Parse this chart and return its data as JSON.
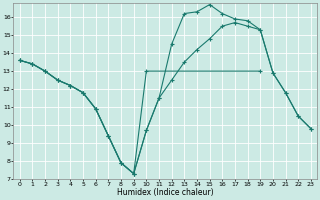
{
  "xlabel": "Humidex (Indice chaleur)",
  "bg_color": "#cceae4",
  "grid_color": "#ffffff",
  "line_color": "#1a7a6e",
  "xlim": [
    -0.5,
    23.5
  ],
  "ylim": [
    7,
    16.8
  ],
  "yticks": [
    7,
    8,
    9,
    10,
    11,
    12,
    13,
    14,
    15,
    16
  ],
  "xticks": [
    0,
    1,
    2,
    3,
    4,
    5,
    6,
    7,
    8,
    9,
    10,
    11,
    12,
    13,
    14,
    15,
    16,
    17,
    18,
    19,
    20,
    21,
    22,
    23
  ],
  "series": [
    {
      "x": [
        0,
        1,
        2,
        3,
        4,
        5,
        6,
        7,
        8,
        9,
        10,
        11,
        12,
        13,
        14,
        15,
        16,
        17,
        18,
        19,
        20,
        21,
        22,
        23
      ],
      "y": [
        13.6,
        13.4,
        13.0,
        12.5,
        12.2,
        11.8,
        10.9,
        9.4,
        7.9,
        7.3,
        9.7,
        11.5,
        14.5,
        16.2,
        16.3,
        16.7,
        16.2,
        15.9,
        15.8,
        15.3,
        12.9,
        11.8,
        10.5,
        9.8
      ]
    },
    {
      "x": [
        0,
        1,
        2,
        3,
        4,
        5,
        6,
        7,
        8,
        9,
        10,
        19
      ],
      "y": [
        13.6,
        13.4,
        13.0,
        12.5,
        12.2,
        11.8,
        10.9,
        9.4,
        7.9,
        7.3,
        13.0,
        13.0
      ]
    },
    {
      "x": [
        0,
        1,
        2,
        3,
        4,
        5,
        6,
        7,
        8,
        9,
        10,
        11,
        12,
        13,
        14,
        15,
        16,
        17,
        18,
        19,
        20,
        21,
        22,
        23
      ],
      "y": [
        13.6,
        13.4,
        13.0,
        12.5,
        12.2,
        11.8,
        10.9,
        9.4,
        7.9,
        7.3,
        9.7,
        11.5,
        12.5,
        13.5,
        14.2,
        14.8,
        15.5,
        15.7,
        15.5,
        15.3,
        12.9,
        11.8,
        10.5,
        9.8
      ]
    }
  ]
}
